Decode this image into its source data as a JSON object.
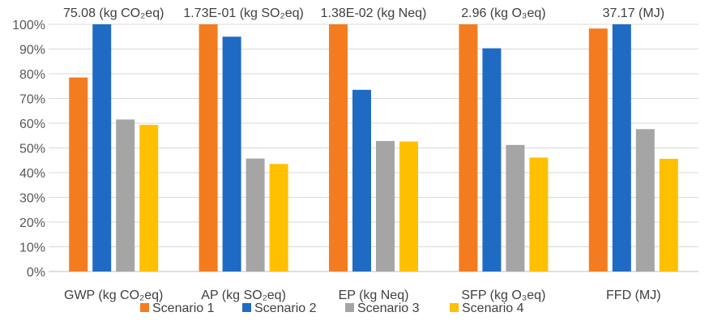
{
  "chart_data": {
    "type": "bar",
    "categories": [
      "GWP (kg CO₂eq)",
      "AP (kg SO₂eq)",
      "EP (kg Neq)",
      "SFP (kg O₃eq)",
      "FFD (MJ)"
    ],
    "top_labels": [
      "75.08 (kg CO₂eq)",
      "1.73E-01 (kg SO₂eq)",
      "1.38E-02 (kg Neq)",
      "2.96  (kg O₃eq)",
      "37.17 (MJ)"
    ],
    "series": [
      {
        "name": "Scenario 1",
        "color": "#F47C20",
        "values": [
          78.5,
          100,
          100,
          100,
          98.3
        ]
      },
      {
        "name": "Scenario 2",
        "color": "#1F6BC4",
        "values": [
          100,
          95,
          73.5,
          90.3,
          100
        ]
      },
      {
        "name": "Scenario 3",
        "color": "#A5A5A5",
        "values": [
          61.5,
          45.7,
          52.8,
          51.2,
          57.6
        ]
      },
      {
        "name": "Scenario 4",
        "color": "#FFC000",
        "values": [
          59.3,
          43.5,
          52.6,
          46.1,
          45.6
        ]
      }
    ],
    "y_ticks": [
      "0%",
      "10%",
      "20%",
      "30%",
      "40%",
      "50%",
      "60%",
      "70%",
      "80%",
      "90%",
      "100%"
    ],
    "ylim": [
      0,
      100
    ],
    "grid": true,
    "legend": "bottom"
  }
}
